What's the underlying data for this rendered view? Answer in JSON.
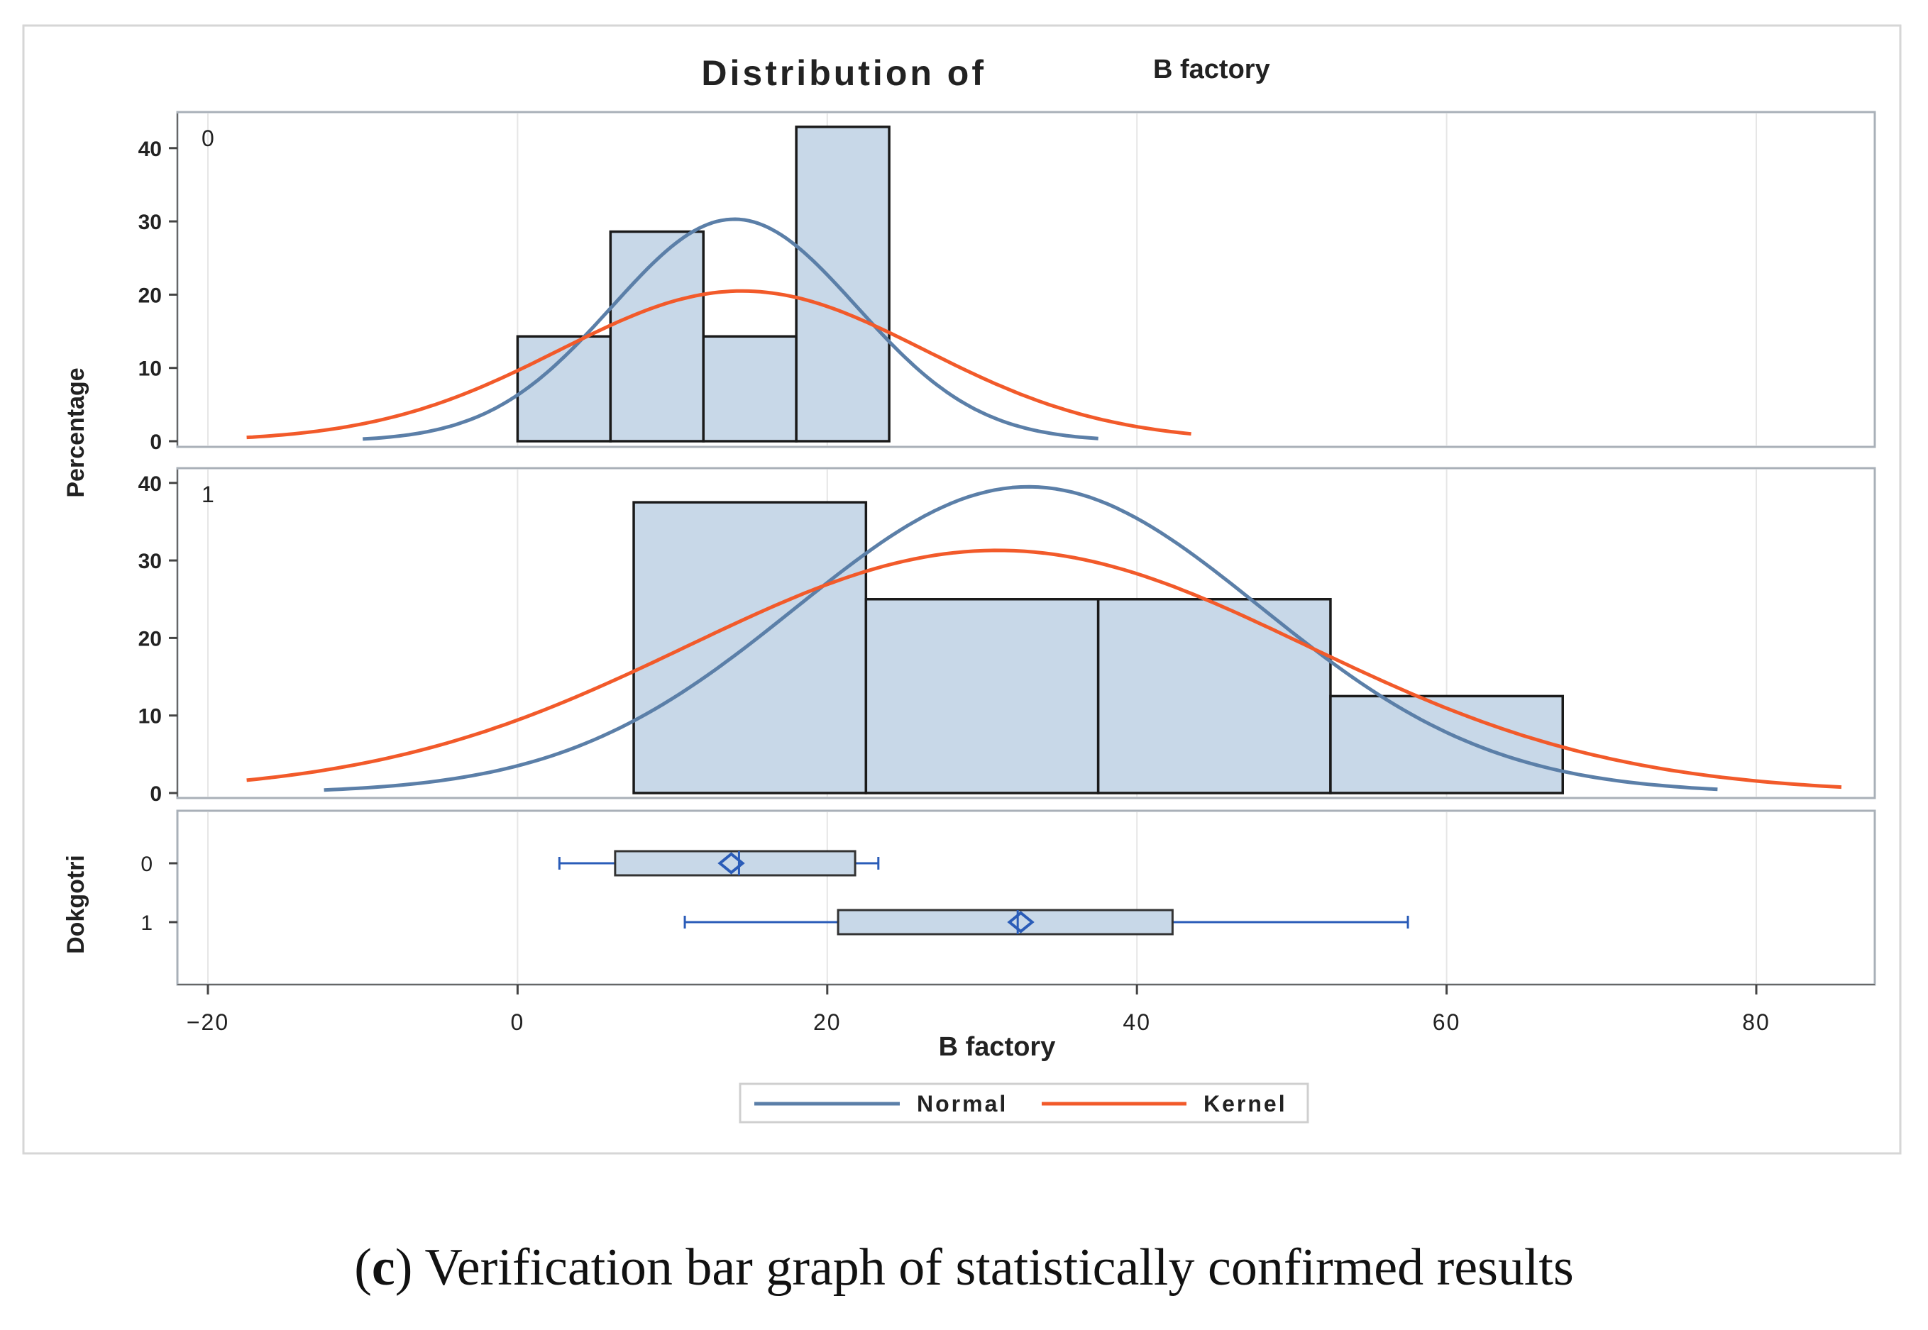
{
  "chart_data": {
    "type": "histogram",
    "title": "Distribution of",
    "title_variable": "B factory",
    "xlabel": "B factory",
    "ylabel": "Percentage",
    "xlim": [
      -20,
      85
    ],
    "xticks": [
      -20,
      0,
      20,
      40,
      60,
      80
    ],
    "xtick_labels": [
      "−20",
      "0",
      "20",
      "40",
      "60",
      "80"
    ],
    "panels": [
      {
        "group_label": "0",
        "ylim": [
          0,
          44
        ],
        "yticks": [
          0,
          10,
          20,
          30,
          40
        ],
        "bars": [
          {
            "x0": 0,
            "x1": 6,
            "value": 14.3
          },
          {
            "x0": 6,
            "x1": 12,
            "value": 28.6
          },
          {
            "x0": 12,
            "x1": 18,
            "value": 14.3
          },
          {
            "x0": 18,
            "x1": 24,
            "value": 42.9
          }
        ],
        "normal": {
          "mean": 14,
          "sd": 7.9,
          "scale": 30.3,
          "x_range": [
            -10,
            37.5
          ]
        },
        "kernel": {
          "mean": 14.5,
          "sd": 11.8,
          "scale": 20.5,
          "x_range": [
            -17.5,
            43.5
          ]
        }
      },
      {
        "group_label": "1",
        "ylim": [
          0,
          40
        ],
        "yticks": [
          0,
          10,
          20,
          30,
          40
        ],
        "bars": [
          {
            "x0": 7.5,
            "x1": 22.5,
            "value": 37.5
          },
          {
            "x0": 22.5,
            "x1": 37.5,
            "value": 25
          },
          {
            "x0": 37.5,
            "x1": 52.5,
            "value": 25
          },
          {
            "x0": 52.5,
            "x1": 67.5,
            "value": 12.5
          }
        ],
        "normal": {
          "mean": 33,
          "sd": 15,
          "scale": 39.5,
          "x_range": [
            -12.5,
            77.5
          ]
        },
        "kernel": {
          "mean": 31,
          "sd": 20,
          "scale": 31.3,
          "x_range": [
            -17.5,
            85.5
          ]
        }
      }
    ],
    "boxplot": {
      "ylabel": "Dokgotri",
      "groups": [
        {
          "label": "0",
          "whisker_low": 2.7,
          "q1": 6.3,
          "median": 14.3,
          "q3": 21.8,
          "whisker_high": 23.3,
          "mean": 13.8
        },
        {
          "label": "1",
          "whisker_low": 10.8,
          "q1": 20.7,
          "median": 32.3,
          "q3": 42.3,
          "whisker_high": 57.5,
          "mean": 32.5
        }
      ]
    },
    "legend": [
      {
        "name": "Normal",
        "color": "#5b7fa8"
      },
      {
        "name": "Kernel",
        "color": "#f25a2a"
      }
    ],
    "legend_position": "bottom-center"
  },
  "colors": {
    "bar_fill": "#c8d8e8",
    "bar_stroke": "#1a1a1a",
    "normal_line": "#5b7fa8",
    "kernel_line": "#f25a2a",
    "box_line": "#2a5cb8",
    "grid": "#e6e6e6",
    "frame": "#a9b0b8"
  },
  "caption": {
    "label": "c",
    "text": "Verification bar graph of statistically confirmed results"
  }
}
